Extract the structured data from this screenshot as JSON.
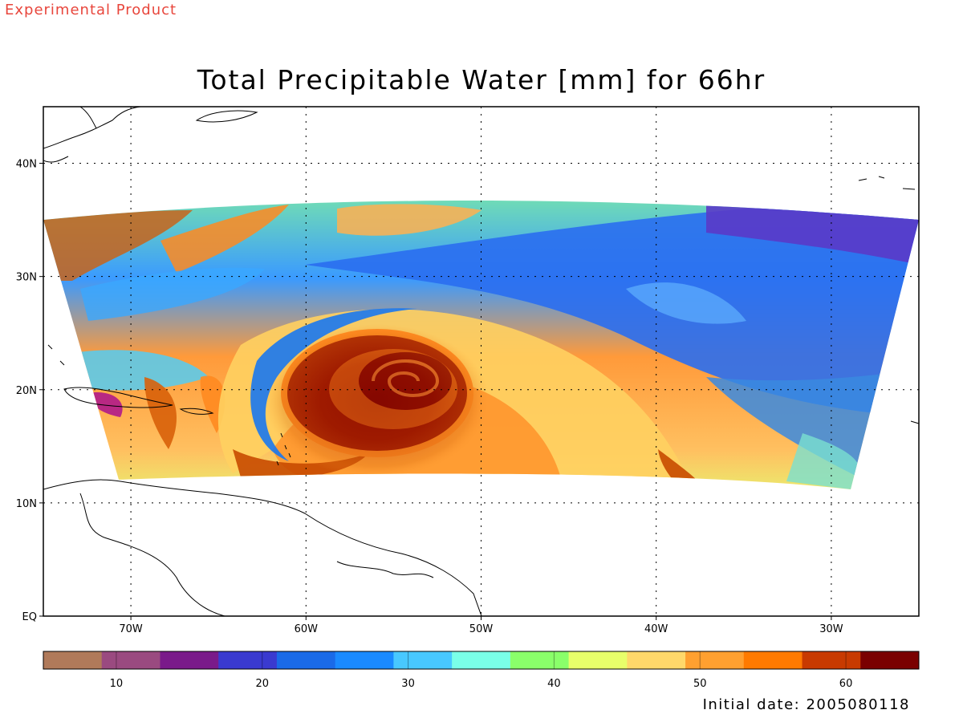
{
  "header": {
    "experimental": "Experimental Product",
    "title": "Total Precipitable Water [mm] for 66hr"
  },
  "map": {
    "lon_range": [
      -75,
      -25
    ],
    "lat_range": [
      0,
      45
    ],
    "lon_ticks": [
      {
        "value": -70,
        "label": "70W"
      },
      {
        "value": -60,
        "label": "60W"
      },
      {
        "value": -50,
        "label": "50W"
      },
      {
        "value": -40,
        "label": "40W"
      },
      {
        "value": -30,
        "label": "30W"
      }
    ],
    "lat_ticks": [
      {
        "value": 0,
        "label": "EQ"
      },
      {
        "value": 10,
        "label": "10N"
      },
      {
        "value": 20,
        "label": "20N"
      },
      {
        "value": 30,
        "label": "30N"
      },
      {
        "value": 40,
        "label": "40N"
      }
    ],
    "grid": "dotted",
    "storm_center": {
      "lon": -53,
      "lat": 21
    }
  },
  "colorbar": {
    "min": 5,
    "max": 65,
    "labels": [
      {
        "value": 10,
        "label": "10"
      },
      {
        "value": 20,
        "label": "20"
      },
      {
        "value": 30,
        "label": "30"
      },
      {
        "value": 40,
        "label": "40"
      },
      {
        "value": 50,
        "label": "50"
      },
      {
        "value": 60,
        "label": "60"
      }
    ],
    "colors": [
      "#b07a5a",
      "#9a4a80",
      "#7a1a8a",
      "#3a3ad0",
      "#1a6ae8",
      "#1a8aff",
      "#48c8ff",
      "#7affe8",
      "#8aff6a",
      "#e8ff6a",
      "#ffd86a",
      "#ffa030",
      "#ff7a00",
      "#c83a00",
      "#7a0000"
    ]
  },
  "footer": {
    "initial_date": "Initial date: 2005080118"
  }
}
